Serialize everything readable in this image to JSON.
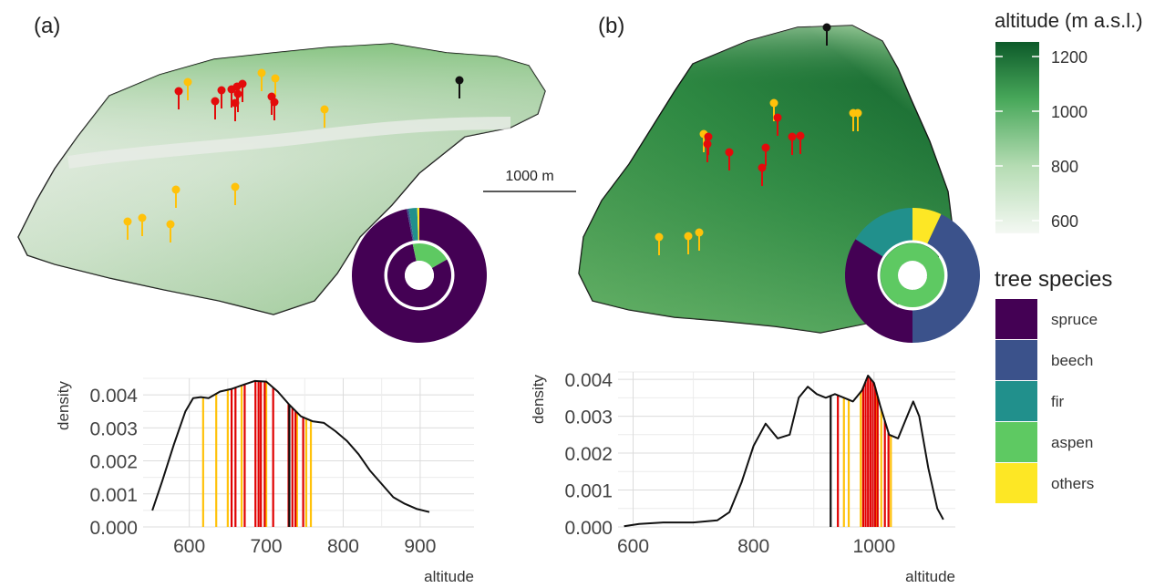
{
  "panels": {
    "a": {
      "label": "(a)"
    },
    "b": {
      "label": "(b)"
    }
  },
  "scalebar": {
    "label": "1000 m"
  },
  "altitude_legend": {
    "title": "altitude (m a.s.l.)",
    "ticks": [
      "1200",
      "1000",
      "800",
      "600"
    ]
  },
  "species_legend": {
    "title": "tree species",
    "items": [
      {
        "label": "spruce",
        "color": "#440154"
      },
      {
        "label": "beech",
        "color": "#3b528b"
      },
      {
        "label": "fir",
        "color": "#21908c"
      },
      {
        "label": "aspen",
        "color": "#5ec962"
      },
      {
        "label": "others",
        "color": "#fde725"
      }
    ]
  },
  "chart_data": [
    {
      "type": "line",
      "panel": "(a)",
      "xlabel": "altitude",
      "ylabel": "density",
      "xlim": [
        540,
        970
      ],
      "ylim": [
        0,
        0.0045
      ],
      "xticks": [
        "600",
        "700",
        "800",
        "900"
      ],
      "xtick_values": [
        600,
        700,
        800,
        900
      ],
      "yticks": [
        "0.000",
        "0.001",
        "0.002",
        "0.003",
        "0.004"
      ],
      "ytick_values": [
        0,
        0.001,
        0.002,
        0.003,
        0.004
      ],
      "grid": true,
      "series": [
        {
          "x": [
            552,
            565,
            580,
            595,
            605,
            615,
            625,
            640,
            655,
            670,
            685,
            700,
            715,
            730,
            745,
            760,
            775,
            790,
            805,
            820,
            835,
            850,
            865,
            880,
            895,
            912
          ],
          "y": [
            0.0005,
            0.0014,
            0.0025,
            0.0035,
            0.0039,
            0.00393,
            0.0039,
            0.0041,
            0.00418,
            0.0043,
            0.00442,
            0.0044,
            0.0041,
            0.0037,
            0.00335,
            0.0032,
            0.00315,
            0.0029,
            0.0026,
            0.0022,
            0.0017,
            0.0013,
            0.0009,
            0.0007,
            0.00055,
            0.00045
          ]
        }
      ],
      "vlines": {
        "yellow": [
          618,
          635,
          650,
          668,
          700,
          740,
          752,
          758
        ],
        "red": [
          655,
          660,
          672,
          686,
          690,
          693,
          698,
          709,
          729,
          734,
          738,
          748
        ],
        "black": [
          730
        ]
      },
      "vline_colors": {
        "yellow": "#ffc20a",
        "red": "#e00000",
        "black": "#111111"
      }
    },
    {
      "type": "line",
      "panel": "(b)",
      "xlabel": "altitude",
      "ylabel": "density",
      "xlim": [
        575,
        1135
      ],
      "ylim": [
        0,
        0.0042
      ],
      "xticks": [
        "600",
        "800",
        "1000"
      ],
      "xtick_values": [
        600,
        800,
        1000
      ],
      "yticks": [
        "0.000",
        "0.001",
        "0.002",
        "0.003",
        "0.004"
      ],
      "ytick_values": [
        0,
        0.001,
        0.002,
        0.003,
        0.004
      ],
      "grid": true,
      "series": [
        {
          "x": [
            585,
            610,
            650,
            700,
            740,
            760,
            780,
            800,
            820,
            840,
            860,
            875,
            890,
            905,
            920,
            935,
            950,
            965,
            980,
            990,
            1000,
            1010,
            1025,
            1040,
            1055,
            1065,
            1075,
            1090,
            1105,
            1115
          ],
          "y": [
            2e-05,
            8e-05,
            0.00012,
            0.00012,
            0.00018,
            0.0004,
            0.0012,
            0.0022,
            0.0028,
            0.0024,
            0.0025,
            0.0035,
            0.0038,
            0.0036,
            0.0035,
            0.0036,
            0.0035,
            0.0034,
            0.0037,
            0.0041,
            0.0039,
            0.0033,
            0.0025,
            0.0024,
            0.003,
            0.0034,
            0.003,
            0.0016,
            0.0005,
            0.0002
          ]
        }
      ],
      "vlines": {
        "yellow": [
          950,
          958,
          978,
          1004,
          1012,
          1028
        ],
        "red": [
          940,
          982,
          986,
          990,
          994,
          998,
          1002,
          1006,
          1018,
          1024
        ],
        "black": [
          928
        ]
      },
      "vline_colors": {
        "yellow": "#ffc20a",
        "red": "#e00000",
        "black": "#111111"
      }
    },
    {
      "type": "pie",
      "panel": "(a)",
      "ring": "outer",
      "categories": [
        "spruce",
        "beech",
        "fir",
        "aspen",
        "others"
      ],
      "values": [
        0.97,
        0.005,
        0.02,
        0.0,
        0.005
      ]
    },
    {
      "type": "pie",
      "panel": "(a)",
      "ring": "inner",
      "categories": [
        "spruce",
        "aspen"
      ],
      "values": [
        0.8,
        0.2
      ]
    },
    {
      "type": "pie",
      "panel": "(b)",
      "ring": "outer",
      "categories": [
        "others",
        "beech",
        "spruce",
        "fir"
      ],
      "values": [
        0.07,
        0.43,
        0.34,
        0.16
      ]
    },
    {
      "type": "pie",
      "panel": "(b)",
      "ring": "inner",
      "categories": [
        "aspen"
      ],
      "values": [
        1.0
      ]
    }
  ]
}
